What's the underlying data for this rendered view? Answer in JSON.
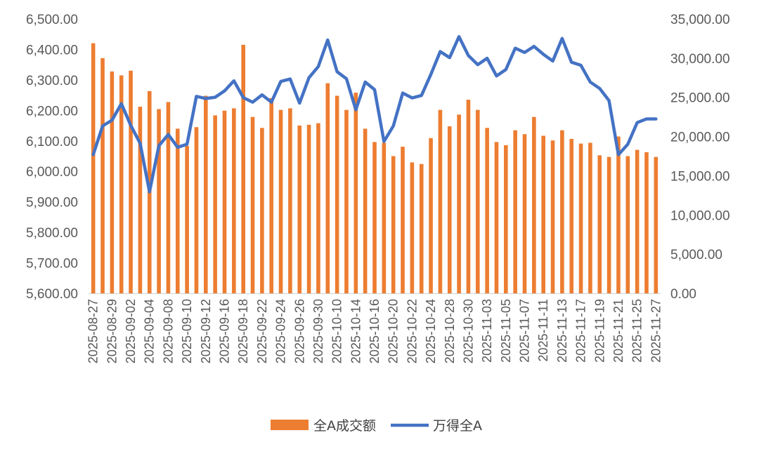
{
  "chart_data": {
    "type": "bar+line",
    "title": "",
    "categories": [
      "2025-08-27",
      "2025-08-28",
      "2025-08-29",
      "2025-09-01",
      "2025-09-02",
      "2025-09-03",
      "2025-09-04",
      "2025-09-05",
      "2025-09-08",
      "2025-09-09",
      "2025-09-10",
      "2025-09-11",
      "2025-09-12",
      "2025-09-15",
      "2025-09-16",
      "2025-09-17",
      "2025-09-18",
      "2025-09-19",
      "2025-09-22",
      "2025-09-23",
      "2025-09-24",
      "2025-09-25",
      "2025-09-26",
      "2025-09-29",
      "2025-09-30",
      "2025-10-09",
      "2025-10-10",
      "2025-10-13",
      "2025-10-14",
      "2025-10-15",
      "2025-10-16",
      "2025-10-17",
      "2025-10-20",
      "2025-10-21",
      "2025-10-22",
      "2025-10-23",
      "2025-10-24",
      "2025-10-27",
      "2025-10-28",
      "2025-10-29",
      "2025-10-30",
      "2025-10-31",
      "2025-11-03",
      "2025-11-04",
      "2025-11-05",
      "2025-11-06",
      "2025-11-07",
      "2025-11-10",
      "2025-11-11",
      "2025-11-12",
      "2025-11-13",
      "2025-11-14",
      "2025-11-17",
      "2025-11-18",
      "2025-11-19",
      "2025-11-20",
      "2025-11-21",
      "2025-11-24",
      "2025-11-25",
      "2025-11-26",
      "2025-11-27"
    ],
    "x_tick_labels": [
      "2025-08-27",
      "2025-08-29",
      "2025-09-02",
      "2025-09-04",
      "2025-09-08",
      "2025-09-10",
      "2025-09-12",
      "2025-09-16",
      "2025-09-18",
      "2025-09-22",
      "2025-09-24",
      "2025-09-26",
      "2025-09-30",
      "2025-10-10",
      "2025-10-14",
      "2025-10-16",
      "2025-10-20",
      "2025-10-22",
      "2025-10-24",
      "2025-10-28",
      "2025-10-30",
      "2025-11-03",
      "2025-11-05",
      "2025-11-07",
      "2025-11-11",
      "2025-11-13",
      "2025-11-17",
      "2025-11-19",
      "2025-11-21",
      "2025-11-25",
      "2025-11-27"
    ],
    "left_axis": {
      "min": 5600,
      "max": 6500,
      "step": 100,
      "tick_labels": [
        "5,600.00",
        "5,700.00",
        "5,800.00",
        "5,900.00",
        "6,000.00",
        "6,100.00",
        "6,200.00",
        "6,300.00",
        "6,400.00",
        "6,500.00"
      ]
    },
    "right_axis": {
      "min": 0,
      "max": 35000,
      "step": 5000,
      "tick_labels": [
        "0.00",
        "5,000.00",
        "10,000.00",
        "15,000.00",
        "20,000.00",
        "25,000.00",
        "30,000.00",
        "35,000.00"
      ]
    },
    "series": [
      {
        "name": "全A成交额",
        "type": "bar",
        "axis": "right",
        "color": "#ED7D31",
        "values": [
          31900,
          30000,
          28300,
          27800,
          28400,
          23800,
          25800,
          23500,
          24400,
          21000,
          18800,
          21200,
          25200,
          22700,
          23300,
          23600,
          31700,
          22500,
          21100,
          24900,
          23400,
          23600,
          21400,
          21500,
          21700,
          26800,
          25200,
          23400,
          25600,
          21000,
          19300,
          19200,
          17500,
          18700,
          16700,
          16500,
          19800,
          23400,
          21300,
          22800,
          24700,
          23400,
          21100,
          19300,
          18900,
          20800,
          20300,
          22500,
          20100,
          19500,
          20800,
          19700,
          19100,
          19200,
          17600,
          17400,
          20000,
          17500,
          18300,
          18000,
          17400
        ]
      },
      {
        "name": "万得全A",
        "type": "line",
        "axis": "left",
        "color": "#4472C4",
        "values": [
          6055,
          6149,
          6168,
          6222,
          6151,
          6092,
          5933,
          6084,
          6121,
          6079,
          6089,
          6246,
          6239,
          6243,
          6264,
          6297,
          6242,
          6227,
          6251,
          6227,
          6295,
          6303,
          6224,
          6307,
          6344,
          6431,
          6327,
          6304,
          6202,
          6293,
          6268,
          6098,
          6149,
          6257,
          6241,
          6249,
          6318,
          6393,
          6373,
          6442,
          6380,
          6350,
          6371,
          6313,
          6334,
          6404,
          6390,
          6410,
          6384,
          6362,
          6436,
          6358,
          6348,
          6293,
          6272,
          6232,
          6055,
          6089,
          6160,
          6172,
          6172
        ]
      }
    ],
    "legend": [
      "全A成交额",
      "万得全A"
    ],
    "legend_position": "bottom",
    "grid": false
  }
}
